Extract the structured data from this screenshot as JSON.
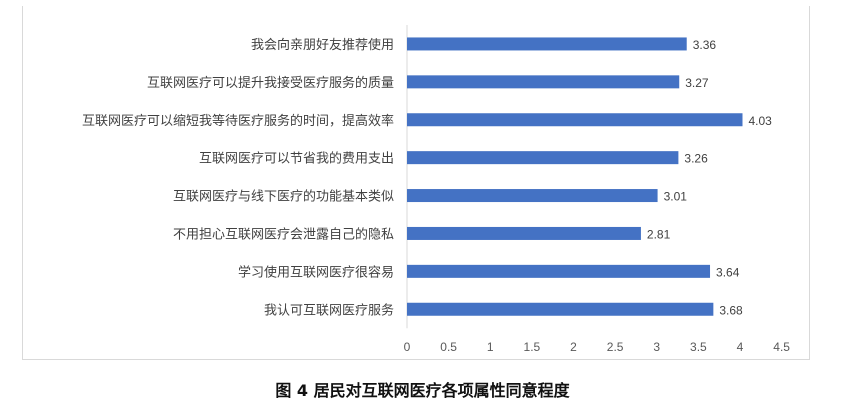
{
  "chart_data": {
    "type": "bar",
    "orientation": "horizontal",
    "categories": [
      "我会向亲朋好友推荐使用",
      "互联网医疗可以提升我接受医疗服务的质量",
      "互联网医疗可以缩短我等待医疗服务的时间，提高效率",
      "互联网医疗可以节省我的费用支出",
      "互联网医疗与线下医疗的功能基本类似",
      "不用担心互联网医疗会泄露自己的隐私",
      "学习使用互联网医疗很容易",
      "我认可互联网医疗服务"
    ],
    "values": [
      3.36,
      3.27,
      4.03,
      3.26,
      3.01,
      2.81,
      3.64,
      3.68
    ],
    "data_labels": [
      "3.36",
      "3.27",
      "4.03",
      "3.26",
      "3.01",
      "2.81",
      "3.64",
      "3.68"
    ],
    "xticks": [
      "0",
      "0.5",
      "1",
      "1.5",
      "2",
      "2.5",
      "3",
      "3.5",
      "4",
      "4.5"
    ],
    "xlim": [
      0,
      4.5
    ],
    "grid": false,
    "bar_color": "#4472c4",
    "caption": "图  4  居民对互联网医疗各项属性同意程度"
  }
}
